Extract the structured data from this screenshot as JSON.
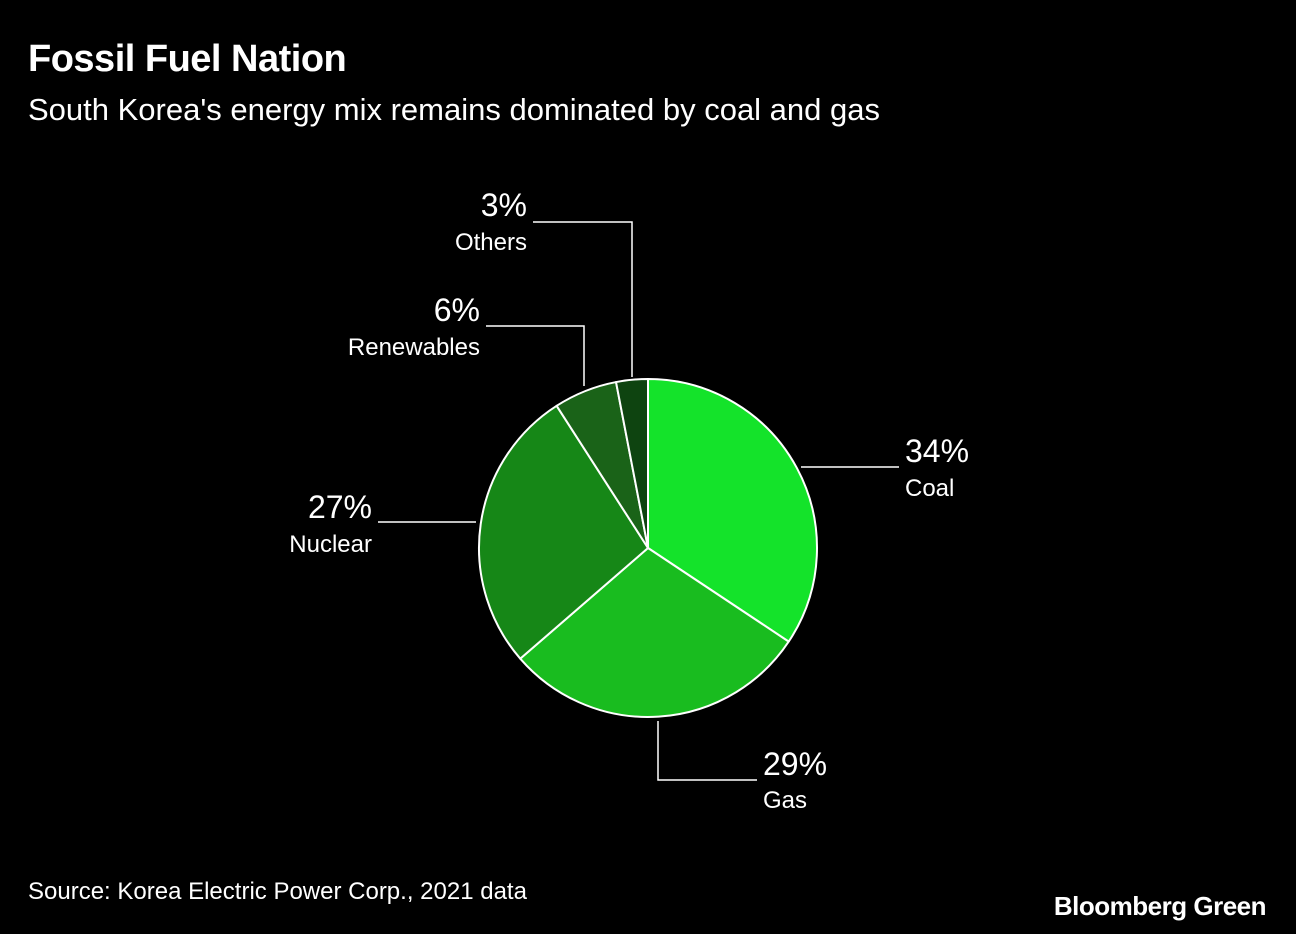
{
  "header": {
    "title": "Fossil Fuel Nation",
    "subtitle": "South Korea's energy mix remains dominated by coal and gas"
  },
  "footer": {
    "source": "Source: Korea Electric Power Corp., 2021 data",
    "brand": "Bloomberg Green"
  },
  "chart_data": {
    "type": "pie",
    "title": "Fossil Fuel Nation",
    "subtitle": "South Korea's energy mix remains dominated by coal and gas",
    "slices": [
      {
        "label": "Coal",
        "value": 34,
        "display": "34%",
        "color": "#14e32a"
      },
      {
        "label": "Gas",
        "value": 29,
        "display": "29%",
        "color": "#19bc1f"
      },
      {
        "label": "Nuclear",
        "value": 27,
        "display": "27%",
        "color": "#168717"
      },
      {
        "label": "Renewables",
        "value": 6,
        "display": "6%",
        "color": "#1a6318"
      },
      {
        "label": "Others",
        "value": 3,
        "display": "3%",
        "color": "#0e4410"
      }
    ],
    "start": "12 o'clock",
    "direction": "clockwise"
  },
  "colors": {
    "background": "#000000",
    "text": "#ffffff",
    "leader_line": "#ffffff",
    "slice_border": "#ffffff"
  }
}
